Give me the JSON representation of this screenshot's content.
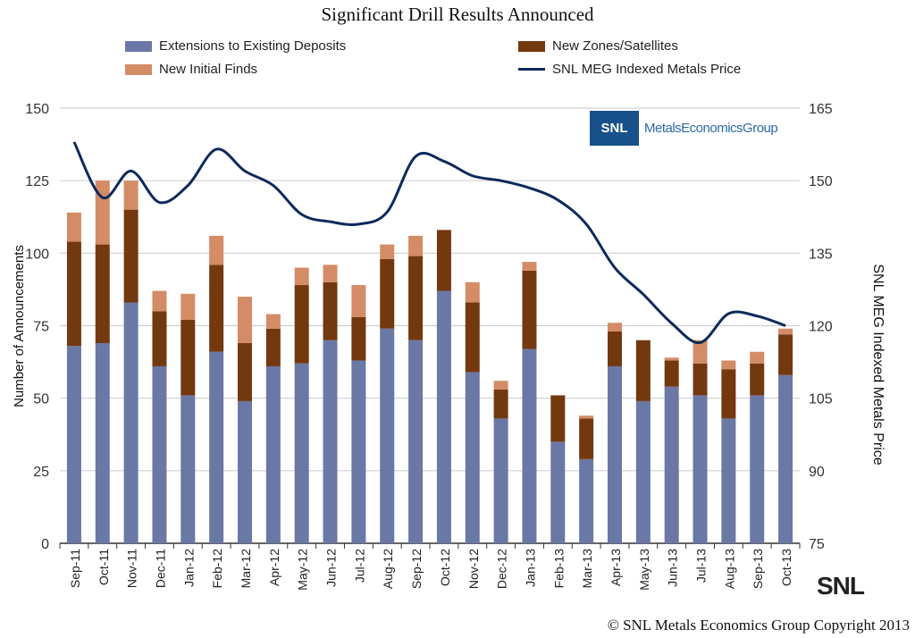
{
  "chart_data": {
    "type": "bar",
    "title": "Significant Drill Results Announced",
    "ylabel": "Number of Announcements",
    "y2label": "SNL MEG Indexed Metals Price",
    "ylim": [
      0,
      150
    ],
    "yticks": [
      0,
      25,
      50,
      75,
      100,
      125,
      150
    ],
    "y2lim": [
      75,
      165
    ],
    "y2ticks": [
      75,
      90,
      105,
      120,
      135,
      150,
      165
    ],
    "grid": true,
    "stacked": true,
    "legend_position": "top",
    "categories": [
      "Sep-11",
      "Oct-11",
      "Nov-11",
      "Dec-11",
      "Jan-12",
      "Feb-12",
      "Mar-12",
      "Apr-12",
      "May-12",
      "Jun-12",
      "Jul-12",
      "Aug-12",
      "Sep-12",
      "Oct-12",
      "Nov-12",
      "Dec-12",
      "Jan-13",
      "Feb-13",
      "Mar-13",
      "Apr-13",
      "May-13",
      "Jun-13",
      "Jul-13",
      "Aug-13",
      "Sep-13",
      "Oct-13"
    ],
    "series": [
      {
        "name": "Extensions to Existing Deposits",
        "type": "bar",
        "axis": "left",
        "color": "#6a78a6",
        "values": [
          68,
          69,
          83,
          61,
          51,
          66,
          49,
          61,
          62,
          70,
          63,
          74,
          70,
          87,
          59,
          43,
          67,
          35,
          29,
          61,
          49,
          54,
          51,
          43,
          51,
          58
        ]
      },
      {
        "name": "New Zones/Satellites",
        "type": "bar",
        "axis": "left",
        "color": "#74380f",
        "values": [
          36,
          34,
          32,
          19,
          26,
          30,
          20,
          13,
          27,
          20,
          15,
          24,
          29,
          21,
          24,
          10,
          27,
          16,
          14,
          12,
          21,
          9,
          11,
          17,
          11,
          14
        ]
      },
      {
        "name": "New Initial Finds",
        "type": "bar",
        "axis": "left",
        "color": "#d48c66",
        "values": [
          10,
          22,
          10,
          7,
          9,
          10,
          16,
          5,
          6,
          6,
          11,
          5,
          7,
          0,
          7,
          3,
          3,
          0,
          1,
          3,
          0,
          1,
          8,
          3,
          4,
          2
        ]
      },
      {
        "name": "SNL MEG Indexed Metals Price",
        "type": "line",
        "axis": "right",
        "color": "#0d2a5c",
        "values": [
          158,
          146.5,
          152,
          145.5,
          149,
          156.5,
          152,
          149,
          143,
          141.5,
          141,
          143.5,
          155,
          154,
          151,
          150,
          148.5,
          146,
          141,
          132,
          126.5,
          120.5,
          116.5,
          122.5,
          122,
          120
        ]
      }
    ]
  },
  "logo": {
    "mark": "SNL",
    "text": "MetalsEconomicsGroup"
  },
  "footer_logo": "SNL",
  "copyright": "© SNL Metals Economics Group Copyright 2013"
}
